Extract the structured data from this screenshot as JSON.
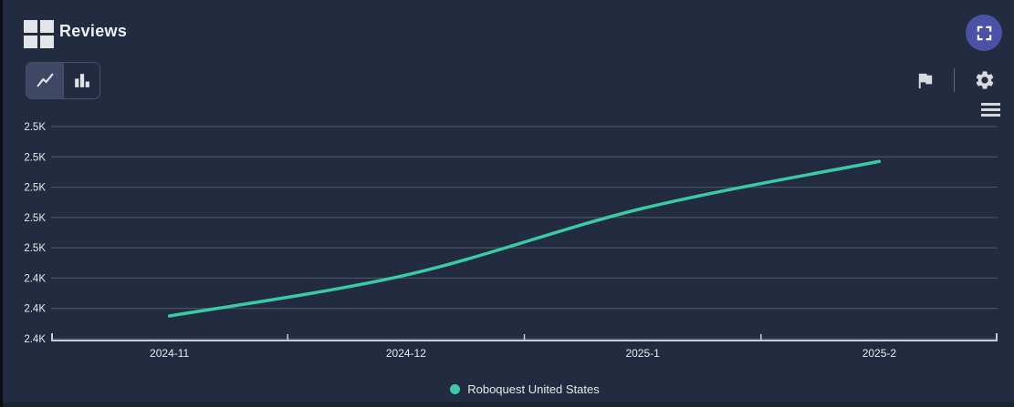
{
  "header": {
    "title": "Reviews"
  },
  "toolbar": {
    "chart_type_selected": "line",
    "icons": [
      "grid-icon",
      "line-chart-icon",
      "bar-chart-icon",
      "flag-icon",
      "gear-icon",
      "menu-icon",
      "fullscreen-icon"
    ]
  },
  "legend": {
    "label": "Roboquest United States",
    "dot_color": "#3fc9a6"
  },
  "chart_data": {
    "type": "line",
    "title": "Reviews",
    "x": [
      "2024-11",
      "2024-12",
      "2025-1",
      "2025-2"
    ],
    "series": [
      {
        "name": "Roboquest United States",
        "values": [
          2415,
          2442,
          2486,
          2517
        ],
        "color": "#3bcba4"
      }
    ],
    "ylim": [
      2400,
      2540
    ],
    "yticks": [
      2400,
      2420,
      2440,
      2460,
      2480,
      2500,
      2520,
      2540
    ],
    "ytick_labels": [
      "2.4K",
      "2.4K",
      "2.4K",
      "2.5K",
      "2.5K",
      "2.5K",
      "2.5K",
      "2.5K"
    ],
    "xlabel": "",
    "ylabel": "",
    "grid": true,
    "legend_position": "bottom"
  },
  "colors": {
    "panel_bg": "#222b40",
    "footer_bg": "#1b2232",
    "grid_line": "rgba(255,255,255,0.22)",
    "axis_line": "#c9ccd4",
    "tick_text": "#e7e9ed",
    "accent_line": "#3bcba4",
    "fullscreen_bg": "#4b52a6",
    "icon": "#d9dbe0"
  }
}
